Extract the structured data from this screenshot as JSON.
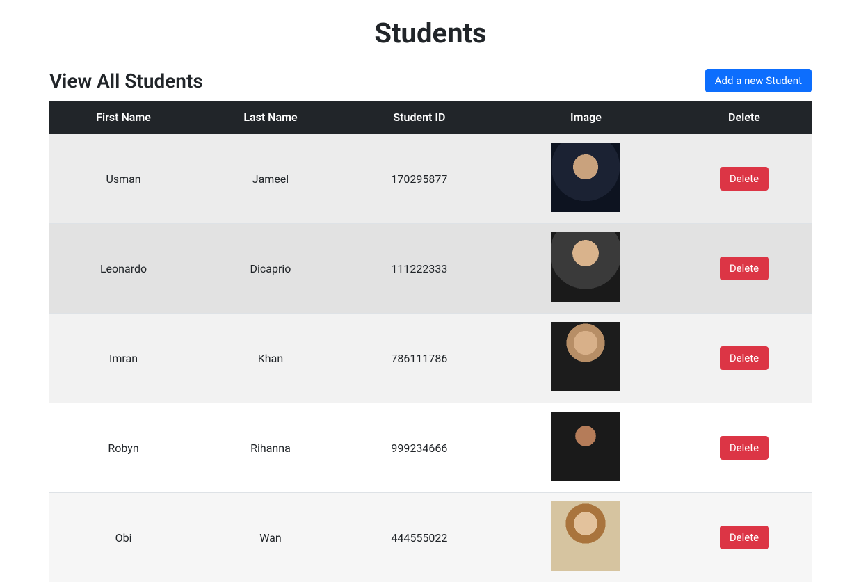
{
  "page": {
    "title": "Students",
    "subtitle": "View All Students",
    "add_button_label": "Add a new Student"
  },
  "colors": {
    "primary": "#0d6efd",
    "danger": "#dc3545",
    "thead_bg": "#212529",
    "thead_fg": "#ffffff"
  },
  "table": {
    "columns": [
      "First Name",
      "Last Name",
      "Student ID",
      "Image",
      "Delete"
    ],
    "delete_label": "Delete",
    "rows": [
      {
        "first_name": "Usman",
        "last_name": "Jameel",
        "student_id": "170295877"
      },
      {
        "first_name": "Leonardo",
        "last_name": "Dicaprio",
        "student_id": "111222333"
      },
      {
        "first_name": "Imran",
        "last_name": "Khan",
        "student_id": "786111786"
      },
      {
        "first_name": "Robyn",
        "last_name": "Rihanna",
        "student_id": "999234666"
      },
      {
        "first_name": "Obi",
        "last_name": "Wan",
        "student_id": "444555022"
      }
    ]
  }
}
